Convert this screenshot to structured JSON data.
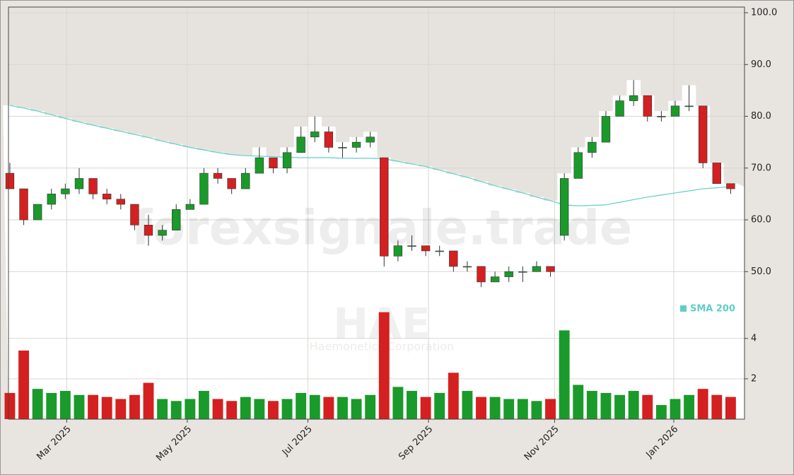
{
  "chart_data": {
    "type": "candlestick",
    "watermark": "forexsignale.trade",
    "symbol": "HAE",
    "company": "Haemonetics Corporation",
    "x": [
      0,
      1,
      2,
      3,
      4,
      5,
      6,
      7,
      8,
      9,
      10,
      11,
      12,
      13,
      14,
      15,
      16,
      17,
      18,
      19,
      20,
      21,
      22,
      23,
      24,
      25,
      26,
      27,
      28,
      29,
      30,
      31,
      32,
      33,
      34,
      35,
      36,
      37,
      38,
      39,
      40,
      41,
      42,
      43,
      44,
      45,
      46,
      47,
      48,
      49,
      50,
      51,
      52
    ],
    "xlim": [
      -0.1,
      53
    ],
    "xticks": [
      {
        "value": 4.1,
        "label": "Mar 2025"
      },
      {
        "value": 12.8,
        "label": "May 2025"
      },
      {
        "value": 21.5,
        "label": "Jul 2025"
      },
      {
        "value": 30.2,
        "label": "Sep 2025"
      },
      {
        "value": 39.3,
        "label": "Nov 2025"
      },
      {
        "value": 47.9,
        "label": "Jan 2026"
      }
    ],
    "open": [
      69,
      66,
      60,
      63,
      65,
      66,
      68,
      65,
      64,
      63,
      59,
      57,
      58,
      62,
      63,
      69,
      68,
      66,
      69,
      72,
      70,
      73,
      76,
      77,
      74,
      74,
      75,
      72,
      53,
      55,
      55,
      54,
      54,
      51,
      51,
      48,
      49,
      50,
      50,
      51,
      57,
      68,
      73,
      75,
      80,
      83,
      84,
      80,
      80,
      82,
      82,
      71,
      67
    ],
    "high": [
      71,
      66,
      63,
      66,
      67,
      70,
      68,
      66,
      65,
      63,
      61,
      59,
      63,
      64,
      70,
      70,
      68,
      70,
      74,
      72,
      74,
      78,
      80,
      78,
      75,
      76,
      77,
      72,
      56,
      57,
      55,
      55,
      54,
      52,
      51,
      50,
      51,
      51,
      52,
      51,
      69,
      74,
      76,
      81,
      84,
      87,
      84,
      81,
      83,
      86,
      82,
      71,
      67
    ],
    "low": [
      66,
      59,
      60,
      62,
      64,
      65,
      64,
      63,
      62,
      58,
      55,
      56,
      58,
      62,
      63,
      67,
      65,
      66,
      69,
      69,
      69,
      73,
      75,
      73,
      72,
      73,
      74,
      51,
      52,
      54,
      53,
      53,
      50,
      50,
      47,
      48,
      48,
      48,
      50,
      49,
      56,
      68,
      72,
      75,
      80,
      82,
      79,
      79,
      80,
      81,
      70,
      67,
      65
    ],
    "close": [
      66,
      60,
      63,
      65,
      66,
      68,
      65,
      64,
      63,
      59,
      57,
      58,
      62,
      63,
      69,
      68,
      66,
      69,
      72,
      70,
      73,
      76,
      77,
      74,
      74,
      75,
      76,
      53,
      55,
      55,
      54,
      54,
      51,
      51,
      48,
      49,
      50,
      50,
      51,
      50,
      68,
      73,
      75,
      80,
      83,
      84,
      80,
      80,
      82,
      82,
      71,
      67,
      66
    ],
    "up_color": "#1a9a2a",
    "down_color": "#d42020",
    "ylim": [
      21.5,
      101.1
    ],
    "yticks": [
      {
        "value": 50,
        "label": "50.0"
      },
      {
        "value": 60,
        "label": "60.0"
      },
      {
        "value": 70,
        "label": "70.0"
      },
      {
        "value": 80,
        "label": "80.0"
      },
      {
        "value": 90,
        "label": "90.0"
      },
      {
        "value": 100,
        "label": "100.0"
      }
    ],
    "sma": {
      "name": "SMA 200",
      "color": "#5fcfc6",
      "values": [
        82.1,
        81.6,
        81.0,
        80.3,
        79.6,
        78.9,
        78.3,
        77.7,
        77.1,
        76.5,
        75.9,
        75.2,
        74.6,
        74.0,
        73.5,
        73.0,
        72.6,
        72.4,
        72.3,
        72.2,
        72.1,
        72.0,
        72.0,
        72.0,
        71.9,
        71.9,
        71.9,
        71.8,
        71.3,
        70.8,
        70.3,
        69.6,
        68.9,
        68.2,
        67.4,
        66.6,
        65.9,
        65.2,
        64.4,
        63.7,
        62.9,
        62.7,
        62.8,
        62.9,
        63.4,
        63.9,
        64.4,
        64.8,
        65.2,
        65.6,
        66.0,
        66.2,
        66.4
      ]
    },
    "volume": {
      "values": [
        1.3,
        3.4,
        1.5,
        1.3,
        1.4,
        1.2,
        1.2,
        1.1,
        1.0,
        1.2,
        1.8,
        1.0,
        0.9,
        1.0,
        1.4,
        1.0,
        0.9,
        1.1,
        1.0,
        0.9,
        1.0,
        1.3,
        1.2,
        1.1,
        1.1,
        1.0,
        1.2,
        5.3,
        1.6,
        1.4,
        1.1,
        1.3,
        2.3,
        1.4,
        1.1,
        1.1,
        1.0,
        1.0,
        0.9,
        1.0,
        4.4,
        1.7,
        1.4,
        1.3,
        1.2,
        1.4,
        1.2,
        0.7,
        1.0,
        1.2,
        1.5,
        1.2,
        1.1
      ],
      "ylim": [
        0,
        6.2
      ],
      "yticks": [
        2,
        4
      ]
    },
    "grid": true
  }
}
